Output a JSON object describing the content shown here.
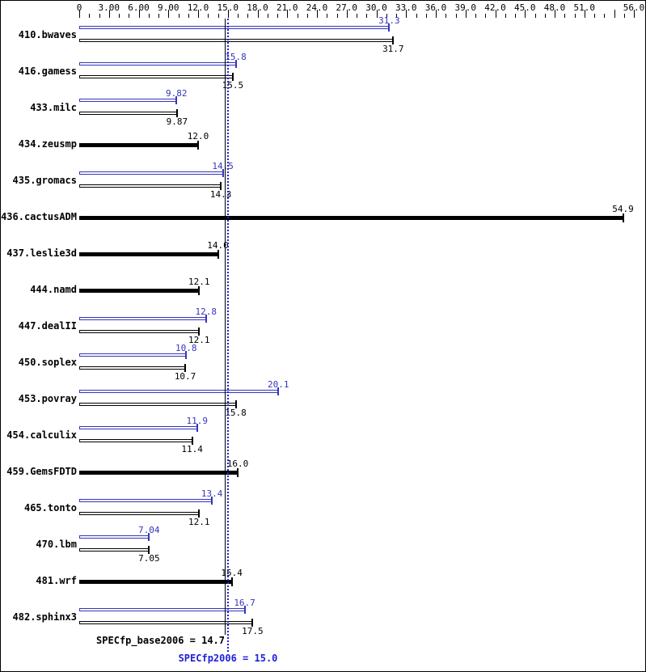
{
  "chart_data": {
    "type": "bar",
    "orientation": "horizontal",
    "legend": "none",
    "grid": false,
    "axis": {
      "min": 0,
      "max": 56,
      "minor_step": 1,
      "major_step": 3,
      "position": "top",
      "tick_labels": [
        {
          "value": 0,
          "label": "0"
        },
        {
          "value": 3,
          "label": "3.00"
        },
        {
          "value": 6,
          "label": "6.00"
        },
        {
          "value": 9,
          "label": "9.00"
        },
        {
          "value": 12,
          "label": "12.0"
        },
        {
          "value": 15,
          "label": "15.0"
        },
        {
          "value": 18,
          "label": "18.0"
        },
        {
          "value": 21,
          "label": "21.0"
        },
        {
          "value": 24,
          "label": "24.0"
        },
        {
          "value": 27,
          "label": "27.0"
        },
        {
          "value": 30,
          "label": "30.0"
        },
        {
          "value": 33,
          "label": "33.0"
        },
        {
          "value": 36,
          "label": "36.0"
        },
        {
          "value": 39,
          "label": "39.0"
        },
        {
          "value": 42,
          "label": "42.0"
        },
        {
          "value": 45,
          "label": "45.0"
        },
        {
          "value": 48,
          "label": "48.0"
        },
        {
          "value": 51,
          "label": "51.0"
        },
        {
          "value": 56,
          "label": "56.0"
        }
      ]
    },
    "benchmarks": [
      {
        "name": "410.bwaves",
        "peak": "31.3",
        "base": "31.7",
        "base_only": false
      },
      {
        "name": "416.gamess",
        "peak": "15.8",
        "base": "15.5",
        "base_only": false
      },
      {
        "name": "433.milc",
        "peak": "9.82",
        "base": "9.87",
        "base_only": false
      },
      {
        "name": "434.zeusmp",
        "peak": null,
        "base": "12.0",
        "base_only": true
      },
      {
        "name": "435.gromacs",
        "peak": "14.5",
        "base": "14.3",
        "base_only": false
      },
      {
        "name": "436.cactusADM",
        "peak": null,
        "base": "54.9",
        "base_only": true
      },
      {
        "name": "437.leslie3d",
        "peak": null,
        "base": "14.0",
        "base_only": true
      },
      {
        "name": "444.namd",
        "peak": null,
        "base": "12.1",
        "base_only": true
      },
      {
        "name": "447.dealII",
        "peak": "12.8",
        "base": "12.1",
        "base_only": false
      },
      {
        "name": "450.soplex",
        "peak": "10.8",
        "base": "10.7",
        "base_only": false
      },
      {
        "name": "453.povray",
        "peak": "20.1",
        "base": "15.8",
        "base_only": false
      },
      {
        "name": "454.calculix",
        "peak": "11.9",
        "base": "11.4",
        "base_only": false
      },
      {
        "name": "459.GemsFDTD",
        "peak": null,
        "base": "16.0",
        "base_only": true
      },
      {
        "name": "465.tonto",
        "peak": "13.4",
        "base": "12.1",
        "base_only": false
      },
      {
        "name": "470.lbm",
        "peak": "7.04",
        "base": "7.05",
        "base_only": false
      },
      {
        "name": "481.wrf",
        "peak": null,
        "base": "15.4",
        "base_only": true
      },
      {
        "name": "482.sphinx3",
        "peak": "16.7",
        "base": "17.5",
        "base_only": false
      }
    ],
    "footer": {
      "base_label": "SPECfp_base2006 = 14.7",
      "base_value": 14.7,
      "peak_label": "SPECfp2006 = 15.0",
      "peak_value": 15.0
    },
    "colors": {
      "peak_bar": "#3535bb",
      "base_bar": "#000000",
      "peak_text": "#3535bb",
      "base_text": "#000000",
      "mean_line_base": "#000000",
      "mean_line_peak": "#2020dd"
    }
  }
}
